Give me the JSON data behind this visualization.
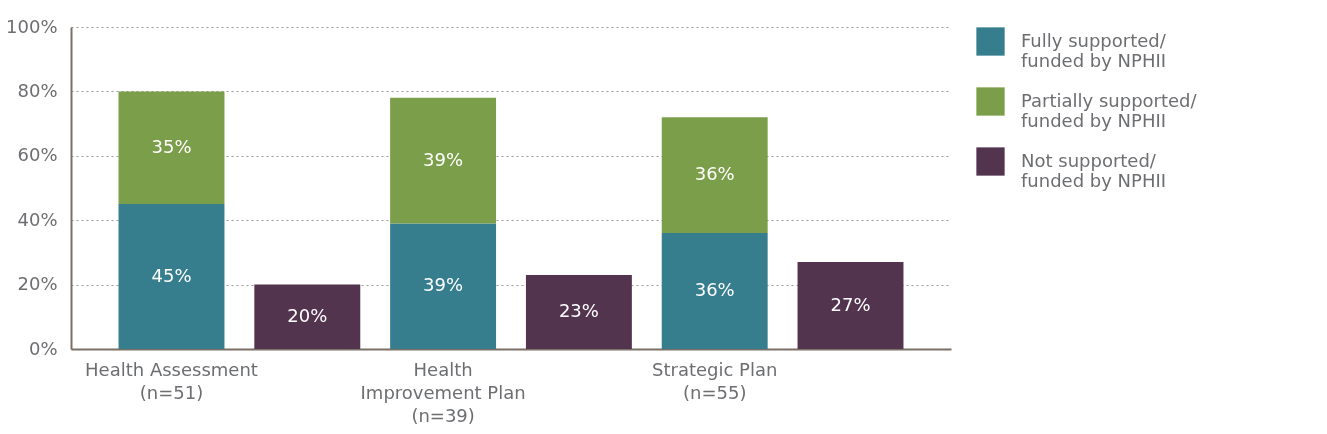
{
  "chart_data": {
    "type": "bar",
    "stacked": true,
    "categories": [
      "Health Assessment\n(n=51)",
      null,
      "Health\nImprovement Plan\n(n=39)",
      null,
      "Strategic Plan\n(n=55)",
      null
    ],
    "series": [
      {
        "name": "Fully supported/\nfunded by NPHII",
        "color": "#367e8e",
        "values": [
          45,
          null,
          39,
          null,
          36,
          null
        ],
        "value_labels": [
          "45%",
          null,
          "39%",
          null,
          "36%",
          null
        ]
      },
      {
        "name": "Partially supported/\nfunded by NPHII",
        "color": "#7a9e49",
        "values": [
          35,
          null,
          39,
          null,
          36,
          null
        ],
        "value_labels": [
          "35%",
          null,
          "39%",
          null,
          "36%",
          null
        ]
      },
      {
        "name": "Not supported/\nfunded by NPHII",
        "color": "#52344f",
        "values": [
          null,
          20,
          null,
          23,
          null,
          27
        ],
        "value_labels": [
          null,
          "20%",
          null,
          "23%",
          null,
          "27%"
        ]
      }
    ],
    "ylim": [
      0,
      100
    ],
    "yticks": [
      {
        "value": 0,
        "label": "0%"
      },
      {
        "value": 20,
        "label": "20%"
      },
      {
        "value": 40,
        "label": "40%"
      },
      {
        "value": 60,
        "label": "60%"
      },
      {
        "value": 80,
        "label": "80%"
      },
      {
        "value": 100,
        "label": "100%"
      }
    ],
    "grid": "y",
    "legend": "top right"
  }
}
